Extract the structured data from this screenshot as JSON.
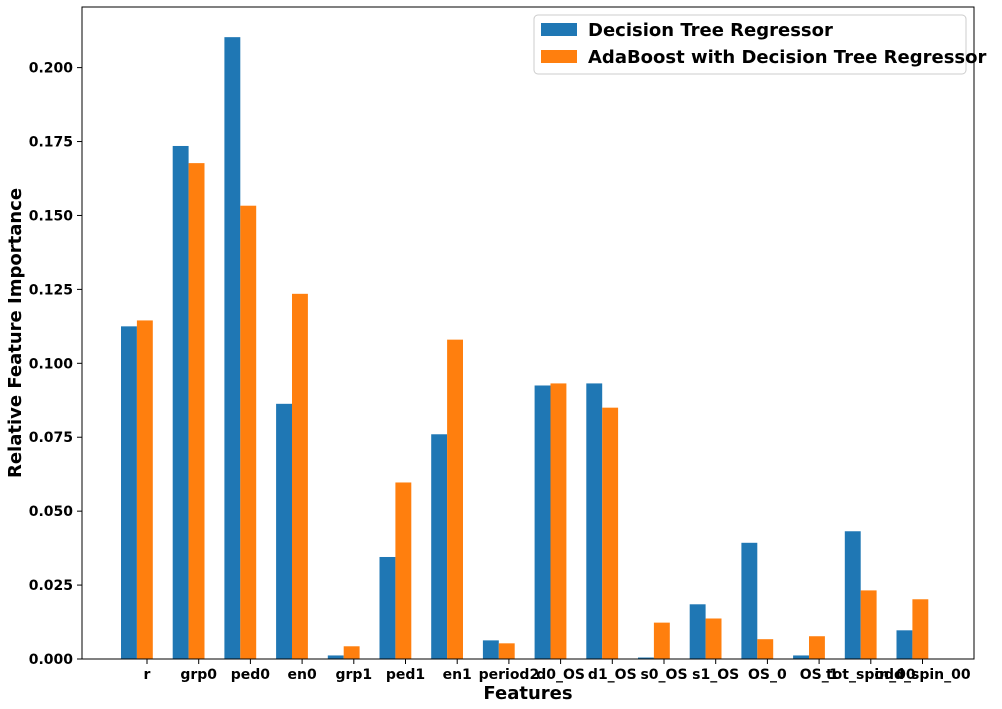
{
  "chart_data": {
    "type": "bar",
    "title": "",
    "xlabel": "Features",
    "ylabel": "Relative Feature Importance",
    "ylim": [
      0,
      0.2205
    ],
    "yticks": [
      "0.000",
      "0.025",
      "0.050",
      "0.075",
      "0.100",
      "0.125",
      "0.150",
      "0.175",
      "0.200"
    ],
    "categories": [
      "r",
      "grp0",
      "ped0",
      "en0",
      "grp1",
      "ped1",
      "en1",
      "period2",
      "d0_OS",
      "d1_OS",
      "s0_OS",
      "s1_OS",
      "OS_0",
      "OS_1",
      "tot_spin_00",
      "odd_spin_00"
    ],
    "series": [
      {
        "name": "Decision Tree Regressor",
        "color": "#1f77b4",
        "values": [
          0.1125,
          0.1735,
          0.2103,
          0.0863,
          0.0012,
          0.0345,
          0.076,
          0.0063,
          0.0925,
          0.0932,
          0.0005,
          0.0185,
          0.0393,
          0.0012,
          0.0432,
          0.0097
        ]
      },
      {
        "name": "AdaBoost with Decision Tree Regressor",
        "color": "#ff7f0e",
        "values": [
          0.1145,
          0.1677,
          0.1533,
          0.1235,
          0.0043,
          0.0597,
          0.108,
          0.0053,
          0.0932,
          0.085,
          0.0123,
          0.0137,
          0.0067,
          0.0077,
          0.0232,
          0.0202
        ]
      }
    ],
    "legend_position": "top-right",
    "grid": false
  }
}
